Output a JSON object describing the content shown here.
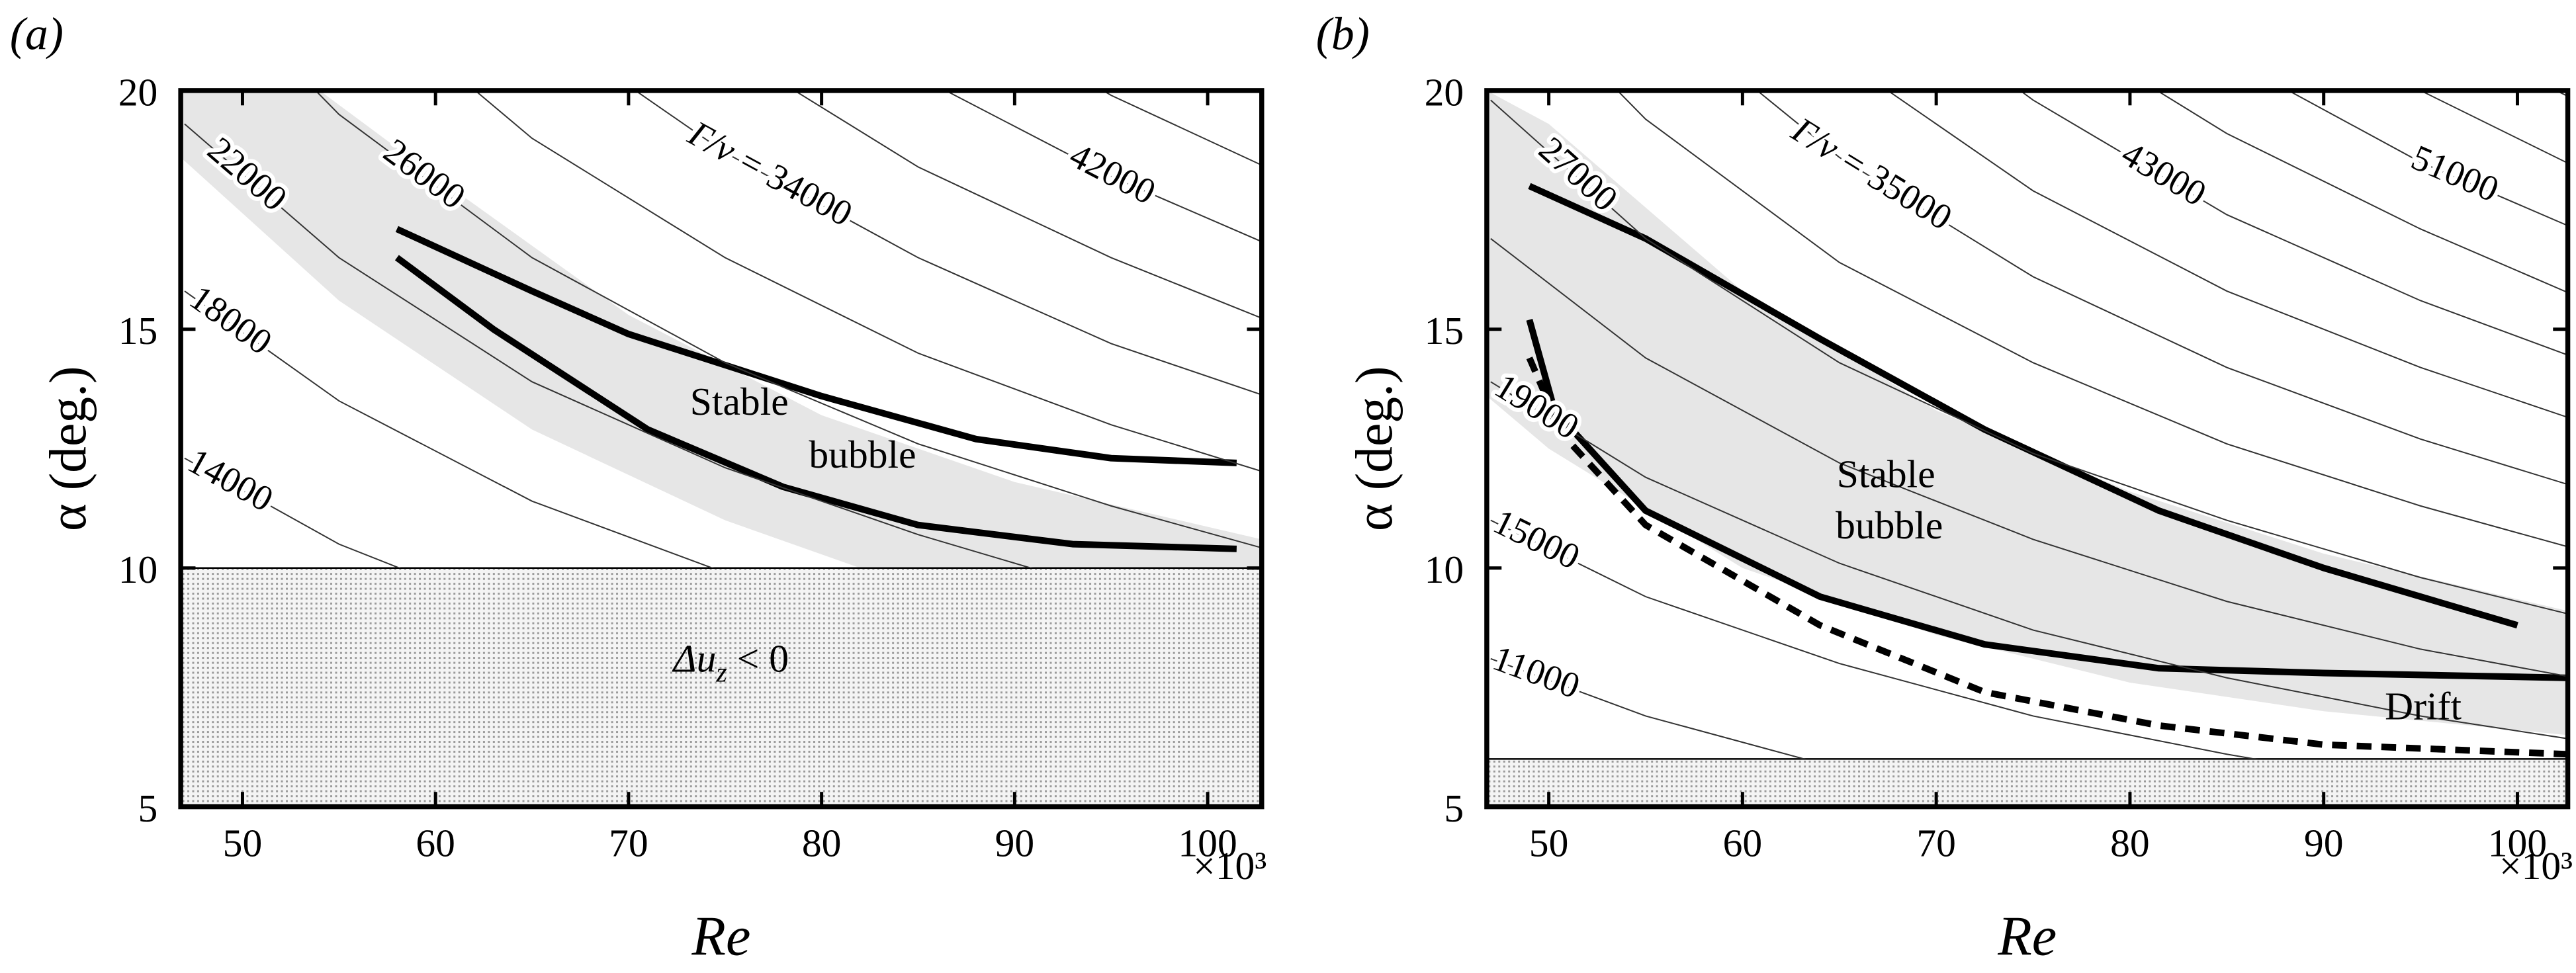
{
  "chart_data": [
    {
      "type": "line",
      "panel_label": "(a)",
      "xlabel": "Re",
      "ylabel": "α (deg.)",
      "x_multiplier": "×10³",
      "xlim": [
        46.8,
        102.8
      ],
      "ylim": [
        5,
        20
      ],
      "xticks": [
        50,
        60,
        70,
        80,
        90,
        100
      ],
      "yticks": [
        5,
        10,
        15,
        20
      ],
      "excluded_below": 10,
      "excluded_label": {
        "base": "Δu",
        "sub": "z",
        "rest": " < 0"
      },
      "annotations": [
        "Stable",
        "bubble"
      ],
      "band": {
        "color": "#e6e6e6",
        "upper": {
          "x": [
            46.8,
            54,
            60,
            70,
            80,
            90,
            102.8
          ],
          "y": [
            20,
            20,
            18.2,
            15.3,
            13.2,
            11.8,
            10.6
          ]
        },
        "lower": {
          "x": [
            46.8,
            55,
            65,
            75,
            82,
            102.8
          ],
          "y": [
            18.6,
            15.6,
            12.9,
            11.0,
            10.0,
            10.0
          ]
        }
      },
      "contour_label_prefix": "Γ/ν = ",
      "contour_x": [
        47,
        55,
        65,
        75,
        85,
        95,
        103
      ],
      "contours": [
        {
          "level": 14000,
          "label": true,
          "values": [
            12.3,
            10.5,
            8.9,
            7.7,
            6.8,
            6.1,
            5.6
          ]
        },
        {
          "level": 18000,
          "label": true,
          "values": [
            15.8,
            13.5,
            11.4,
            9.9,
            8.7,
            7.8,
            7.2
          ]
        },
        {
          "level": 22000,
          "label": true,
          "values": [
            19.3,
            16.5,
            13.9,
            12.1,
            10.7,
            9.5,
            8.8
          ]
        },
        {
          "level": 26000,
          "label": true,
          "values": [
            22.8,
            19.5,
            16.5,
            14.3,
            12.6,
            11.3,
            10.4
          ]
        },
        {
          "level": 30000,
          "label": false,
          "values": [
            26.3,
            22.4,
            19.0,
            16.5,
            14.5,
            13.0,
            12.0
          ]
        },
        {
          "level": 34000,
          "label": true,
          "prefix": true,
          "values": [
            29.8,
            25.4,
            21.5,
            18.7,
            16.5,
            14.7,
            13.6
          ]
        },
        {
          "level": 38000,
          "label": false,
          "values": [
            33.3,
            28.4,
            24.1,
            20.9,
            18.4,
            16.5,
            15.2
          ]
        },
        {
          "level": 42000,
          "label": true,
          "values": [
            36.8,
            31.4,
            26.6,
            23.0,
            20.3,
            18.2,
            16.8
          ]
        },
        {
          "level": 46000,
          "label": false,
          "values": [
            40.3,
            34.4,
            29.1,
            25.2,
            22.3,
            19.9,
            18.4
          ]
        },
        {
          "level": 50000,
          "label": false,
          "values": [
            43.8,
            37.4,
            31.7,
            27.4,
            24.2,
            21.7,
            20.0
          ]
        }
      ],
      "series": [
        {
          "color": "#000000",
          "dashed": false,
          "x": [
            58,
            65,
            70,
            80,
            88,
            95,
            101.5
          ],
          "values": [
            17.1,
            15.8,
            14.9,
            13.6,
            12.7,
            12.3,
            12.2
          ]
        },
        {
          "color": "#000000",
          "dashed": false,
          "x": [
            58,
            63,
            71,
            78,
            85,
            93,
            101.5
          ],
          "values": [
            16.5,
            15.0,
            12.9,
            11.7,
            10.9,
            10.5,
            10.4
          ]
        }
      ]
    },
    {
      "type": "line",
      "panel_label": "(b)",
      "xlabel": "Re",
      "ylabel": "α (deg.)",
      "x_multiplier": "×10³",
      "xlim": [
        46.8,
        102.6
      ],
      "ylim": [
        5,
        20
      ],
      "xticks": [
        50,
        60,
        70,
        80,
        90,
        100
      ],
      "yticks": [
        5,
        10,
        15,
        20
      ],
      "excluded_below": 6,
      "annotations": [
        "Stable",
        "bubble",
        "Drift"
      ],
      "band": {
        "color": "#e6e6e6",
        "upper": {
          "x": [
            46.8,
            50,
            60,
            70,
            80,
            90,
            102.6
          ],
          "y": [
            20,
            19.3,
            15.8,
            13.3,
            11.6,
            10.3,
            9.1
          ]
        },
        "lower": {
          "x": [
            46.8,
            50,
            60,
            70,
            80,
            90,
            102.6
          ],
          "y": [
            13.6,
            12.5,
            10.0,
            8.6,
            7.6,
            7.0,
            6.5
          ]
        }
      },
      "contour_label_prefix": "Γ/ν = ",
      "contour_x": [
        47,
        55,
        65,
        75,
        85,
        95,
        103
      ],
      "contours": [
        {
          "level": 11000,
          "label": true,
          "values": [
            8.1,
            6.9,
            5.8,
            5.1,
            4.5,
            4.0,
            3.7
          ]
        },
        {
          "level": 15000,
          "label": true,
          "values": [
            11.0,
            9.4,
            8.0,
            6.9,
            6.1,
            5.4,
            5.0
          ]
        },
        {
          "level": 19000,
          "label": true,
          "values": [
            13.9,
            11.9,
            10.1,
            8.7,
            7.7,
            6.9,
            6.4
          ]
        },
        {
          "level": 23000,
          "label": false,
          "values": [
            16.9,
            14.4,
            12.2,
            10.6,
            9.3,
            8.3,
            7.7
          ]
        },
        {
          "level": 27000,
          "label": true,
          "values": [
            19.8,
            16.9,
            14.3,
            12.4,
            11.0,
            9.8,
            9.0
          ]
        },
        {
          "level": 31000,
          "label": false,
          "values": [
            22.7,
            19.4,
            16.4,
            14.3,
            12.6,
            11.3,
            10.4
          ]
        },
        {
          "level": 35000,
          "label": true,
          "prefix": true,
          "values": [
            25.7,
            21.9,
            18.6,
            16.1,
            14.2,
            12.7,
            11.7
          ]
        },
        {
          "level": 39000,
          "label": false,
          "values": [
            28.6,
            24.5,
            20.7,
            17.9,
            15.8,
            14.2,
            13.1
          ]
        },
        {
          "level": 43000,
          "label": true,
          "values": [
            31.5,
            27.0,
            22.8,
            19.8,
            17.4,
            15.6,
            14.4
          ]
        },
        {
          "level": 47000,
          "label": false,
          "values": [
            34.5,
            29.5,
            24.9,
            21.6,
            19.1,
            17.1,
            15.7
          ]
        },
        {
          "level": 51000,
          "label": true,
          "values": [
            37.4,
            32.0,
            27.1,
            23.4,
            20.7,
            18.5,
            17.1
          ]
        },
        {
          "level": 55000,
          "label": false,
          "values": [
            40.4,
            34.5,
            29.2,
            25.3,
            22.3,
            20.0,
            18.4
          ]
        },
        {
          "level": 59000,
          "label": false,
          "values": [
            43.3,
            37.0,
            31.3,
            27.1,
            23.9,
            21.4,
            19.8
          ]
        }
      ],
      "series": [
        {
          "color": "#000000",
          "dashed": false,
          "x": [
            49,
            55,
            64,
            72.5,
            81.5,
            90,
            100
          ],
          "values": [
            18.0,
            16.9,
            14.8,
            12.9,
            11.2,
            10.0,
            8.8
          ]
        },
        {
          "color": "#000000",
          "dashed": false,
          "x": [
            49,
            50.3,
            55,
            64,
            72.5,
            81.5,
            90,
            102.5
          ],
          "values": [
            15.2,
            13.3,
            11.2,
            9.4,
            8.4,
            7.9,
            7.8,
            7.7
          ]
        },
        {
          "color": "#000000",
          "dashed": true,
          "x": [
            49,
            50.7,
            55,
            64,
            72.5,
            81.5,
            90,
            102.5
          ],
          "values": [
            14.4,
            12.8,
            10.9,
            8.8,
            7.4,
            6.7,
            6.3,
            6.1
          ]
        }
      ]
    }
  ]
}
